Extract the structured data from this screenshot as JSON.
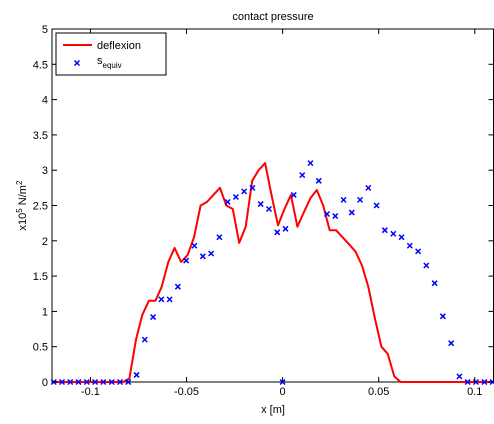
{
  "chart_data": {
    "type": "line",
    "title": "contact pressure",
    "xlabel": "x [m]",
    "ylabel_parts": {
      "prefix": "x10",
      "exp": "5",
      "unit": " N/m",
      "unit_exp": "2"
    },
    "xlim": [
      -0.12,
      0.11
    ],
    "ylim": [
      0,
      5
    ],
    "x_ticks": [
      -0.1,
      -0.05,
      0,
      0.05,
      0.1
    ],
    "x_tick_labels": [
      "-0.1",
      "-0.05",
      "0",
      "0.05",
      "0.1"
    ],
    "y_ticks": [
      0,
      0.5,
      1,
      1.5,
      2,
      2.5,
      3,
      3.5,
      4,
      4.5,
      5
    ],
    "y_tick_labels": [
      "0",
      "0.5",
      "1",
      "1.5",
      "2",
      "2.5",
      "3",
      "3.5",
      "4",
      "4.5",
      "5"
    ],
    "grid": false,
    "legend_position": "top-left",
    "series": [
      {
        "name": "deflexion",
        "style": "line",
        "color": "#ff0000",
        "x": [
          -0.12,
          -0.1166,
          -0.1133,
          -0.1099,
          -0.1066,
          -0.1032,
          -0.0998,
          -0.0965,
          -0.0931,
          -0.0898,
          -0.0864,
          -0.083,
          -0.0797,
          -0.0763,
          -0.073,
          -0.0696,
          -0.0662,
          -0.0629,
          -0.0595,
          -0.0562,
          -0.0528,
          -0.0494,
          -0.0461,
          -0.0427,
          -0.0394,
          -0.036,
          -0.0326,
          -0.0293,
          -0.0259,
          -0.0226,
          -0.0192,
          -0.0158,
          -0.0125,
          -0.0091,
          -0.0058,
          -0.0024,
          0.001,
          0.0043,
          0.0077,
          0.011,
          0.0144,
          0.0178,
          0.0211,
          0.0245,
          0.0278,
          0.0312,
          0.0346,
          0.0379,
          0.0413,
          0.0446,
          0.048,
          0.0514,
          0.0547,
          0.0581,
          0.0614,
          0.0648,
          0.0682,
          0.0715,
          0.0749,
          0.0782,
          0.0816,
          0.085,
          0.0883,
          0.0917,
          0.095,
          0.0984,
          0.1018,
          0.1051,
          0.11
        ],
        "y": [
          0,
          0,
          0,
          0,
          0,
          0,
          0,
          0,
          0,
          0,
          0,
          0,
          0.05,
          0.6,
          0.95,
          1.15,
          1.15,
          1.35,
          1.7,
          1.9,
          1.7,
          1.8,
          2.05,
          2.5,
          2.55,
          2.65,
          2.75,
          2.5,
          2.45,
          1.97,
          2.2,
          2.85,
          3.0,
          3.1,
          2.65,
          2.22,
          2.45,
          2.65,
          2.2,
          2.4,
          2.6,
          2.72,
          2.5,
          2.15,
          2.15,
          2.05,
          1.95,
          1.85,
          1.65,
          1.35,
          0.9,
          0.5,
          0.4,
          0.08,
          0,
          0,
          0,
          0,
          0,
          0,
          0,
          0,
          0,
          0,
          0,
          0,
          0,
          0,
          0
        ]
      },
      {
        "name": "s",
        "name_subscript": "equiv",
        "style": "markers",
        "marker": "x",
        "color": "#0000ff",
        "x": [
          -0.1191,
          -0.1148,
          -0.1105,
          -0.1062,
          -0.1019,
          -0.0976,
          -0.0933,
          -0.0889,
          -0.0846,
          -0.0803,
          -0.076,
          -0.0717,
          -0.0674,
          -0.0631,
          -0.0588,
          -0.0545,
          -0.0502,
          -0.0459,
          -0.0415,
          -0.0372,
          -0.0329,
          -0.0286,
          -0.0243,
          -0.02,
          -0.0157,
          -0.0114,
          -0.0071,
          -0.0028,
          0.0015,
          0.0058,
          0.0102,
          0.0145,
          0.0188,
          0.0231,
          0.0274,
          0.0317,
          0.036,
          0.0403,
          0.0446,
          0.0489,
          0.0532,
          0.0576,
          0.0619,
          0.0662,
          0.0705,
          0.0748,
          0.0791,
          0.0834,
          0.0877,
          0.092,
          0.0963,
          0.1006,
          0.105,
          0.1093,
          0.0
        ],
        "y": [
          0,
          0,
          0,
          0,
          0,
          0,
          0,
          0,
          0,
          0,
          0.1,
          0.6,
          0.92,
          1.17,
          1.17,
          1.35,
          1.72,
          1.93,
          1.78,
          1.82,
          2.05,
          2.55,
          2.62,
          2.7,
          2.75,
          2.52,
          2.45,
          2.12,
          2.17,
          2.65,
          2.93,
          3.1,
          2.85,
          2.38,
          2.35,
          2.58,
          2.4,
          2.58,
          2.75,
          2.5,
          2.15,
          2.1,
          2.05,
          1.93,
          1.85,
          1.65,
          1.4,
          0.93,
          0.55,
          0.08,
          0,
          0,
          0,
          0,
          0
        ]
      }
    ]
  }
}
